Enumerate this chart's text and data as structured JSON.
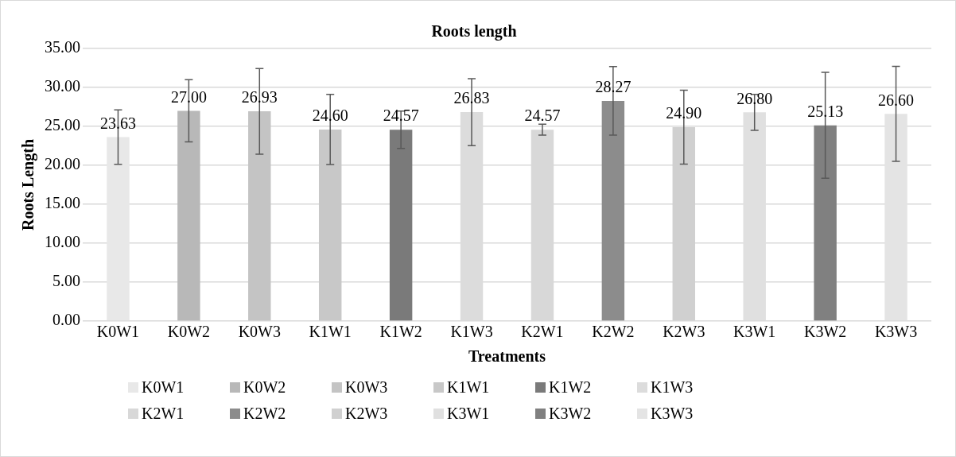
{
  "chart_data": {
    "type": "bar",
    "title": "Roots length",
    "xlabel": "Treatments",
    "ylabel": "Roots Length",
    "categories": [
      "K0W1",
      "K0W2",
      "K0W3",
      "K1W1",
      "K1W2",
      "K1W3",
      "K2W1",
      "K2W2",
      "K2W3",
      "K3W1",
      "K3W2",
      "K3W3"
    ],
    "ylim": [
      0,
      35
    ],
    "yticks": [
      {
        "value": 0,
        "label": "0.00"
      },
      {
        "value": 5,
        "label": "5.00"
      },
      {
        "value": 10,
        "label": "10.00"
      },
      {
        "value": 15,
        "label": "15.00"
      },
      {
        "value": 20,
        "label": "20.00"
      },
      {
        "value": 25,
        "label": "25.00"
      },
      {
        "value": 30,
        "label": "30.00"
      },
      {
        "value": 35,
        "label": "35.00"
      }
    ],
    "grid": "y",
    "legend": "bottom",
    "series": [
      {
        "name": "K0W1",
        "color": "#e8e8e8",
        "values": [
          23.63,
          null,
          null,
          null,
          null,
          null,
          null,
          null,
          null,
          null,
          null,
          null
        ],
        "errors": [
          3.5,
          null,
          null,
          null,
          null,
          null,
          null,
          null,
          null,
          null,
          null,
          null
        ],
        "value_labels": [
          "23.63",
          null,
          null,
          null,
          null,
          null,
          null,
          null,
          null,
          null,
          null,
          null
        ]
      },
      {
        "name": "K0W2",
        "color": "#b8b8b8",
        "values": [
          null,
          27,
          null,
          null,
          null,
          null,
          null,
          null,
          null,
          null,
          null,
          null
        ],
        "errors": [
          null,
          4,
          null,
          null,
          null,
          null,
          null,
          null,
          null,
          null,
          null,
          null
        ],
        "value_labels": [
          null,
          "27.00",
          null,
          null,
          null,
          null,
          null,
          null,
          null,
          null,
          null,
          null
        ]
      },
      {
        "name": "K0W3",
        "color": "#c4c4c4",
        "values": [
          null,
          null,
          26.93,
          null,
          null,
          null,
          null,
          null,
          null,
          null,
          null,
          null
        ],
        "errors": [
          null,
          null,
          5.5,
          null,
          null,
          null,
          null,
          null,
          null,
          null,
          null,
          null
        ],
        "value_labels": [
          null,
          null,
          "26.93",
          null,
          null,
          null,
          null,
          null,
          null,
          null,
          null,
          null
        ]
      },
      {
        "name": "K1W1",
        "color": "#c8c8c8",
        "values": [
          null,
          null,
          null,
          24.6,
          null,
          null,
          null,
          null,
          null,
          null,
          null,
          null
        ],
        "errors": [
          null,
          null,
          null,
          4.5,
          null,
          null,
          null,
          null,
          null,
          null,
          null,
          null
        ],
        "value_labels": [
          null,
          null,
          null,
          "24.60",
          null,
          null,
          null,
          null,
          null,
          null,
          null,
          null
        ]
      },
      {
        "name": "K1W2",
        "color": "#7a7a7a",
        "values": [
          null,
          null,
          null,
          null,
          24.57,
          null,
          null,
          null,
          null,
          null,
          null,
          null
        ],
        "errors": [
          null,
          null,
          null,
          null,
          2.4,
          null,
          null,
          null,
          null,
          null,
          null,
          null
        ],
        "value_labels": [
          null,
          null,
          null,
          null,
          "24.57",
          null,
          null,
          null,
          null,
          null,
          null,
          null
        ]
      },
      {
        "name": "K1W3",
        "color": "#dcdcdc",
        "values": [
          null,
          null,
          null,
          null,
          null,
          26.83,
          null,
          null,
          null,
          null,
          null,
          null
        ],
        "errors": [
          null,
          null,
          null,
          null,
          null,
          4.3,
          null,
          null,
          null,
          null,
          null,
          null
        ],
        "value_labels": [
          null,
          null,
          null,
          null,
          null,
          "26.83",
          null,
          null,
          null,
          null,
          null,
          null
        ]
      },
      {
        "name": "K2W1",
        "color": "#d8d8d8",
        "values": [
          null,
          null,
          null,
          null,
          null,
          null,
          24.57,
          null,
          null,
          null,
          null,
          null
        ],
        "errors": [
          null,
          null,
          null,
          null,
          null,
          null,
          0.7,
          null,
          null,
          null,
          null,
          null
        ],
        "value_labels": [
          null,
          null,
          null,
          null,
          null,
          null,
          "24.57",
          null,
          null,
          null,
          null,
          null
        ]
      },
      {
        "name": "K2W2",
        "color": "#8c8c8c",
        "values": [
          null,
          null,
          null,
          null,
          null,
          null,
          null,
          28.27,
          null,
          null,
          null,
          null
        ],
        "errors": [
          null,
          null,
          null,
          null,
          null,
          null,
          null,
          4.4,
          null,
          null,
          null,
          null
        ],
        "value_labels": [
          null,
          null,
          null,
          null,
          null,
          null,
          null,
          "28.27",
          null,
          null,
          null,
          null
        ]
      },
      {
        "name": "K2W3",
        "color": "#d0d0d0",
        "values": [
          null,
          null,
          null,
          null,
          null,
          null,
          null,
          null,
          24.9,
          null,
          null,
          null
        ],
        "errors": [
          null,
          null,
          null,
          null,
          null,
          null,
          null,
          null,
          4.75,
          null,
          null,
          null
        ],
        "value_labels": [
          null,
          null,
          null,
          null,
          null,
          null,
          null,
          null,
          "24.90",
          null,
          null,
          null
        ]
      },
      {
        "name": "K3W1",
        "color": "#e0e0e0",
        "values": [
          null,
          null,
          null,
          null,
          null,
          null,
          null,
          null,
          null,
          26.8,
          null,
          null
        ],
        "errors": [
          null,
          null,
          null,
          null,
          null,
          null,
          null,
          null,
          null,
          2.3,
          null,
          null
        ],
        "value_labels": [
          null,
          null,
          null,
          null,
          null,
          null,
          null,
          null,
          null,
          "26.80",
          null,
          null
        ]
      },
      {
        "name": "K3W2",
        "color": "#808080",
        "values": [
          null,
          null,
          null,
          null,
          null,
          null,
          null,
          null,
          null,
          null,
          25.13,
          null
        ],
        "errors": [
          null,
          null,
          null,
          null,
          null,
          null,
          null,
          null,
          null,
          null,
          6.8,
          null
        ],
        "value_labels": [
          null,
          null,
          null,
          null,
          null,
          null,
          null,
          null,
          null,
          null,
          "25.13",
          null
        ]
      },
      {
        "name": "K3W3",
        "color": "#e4e4e4",
        "values": [
          null,
          null,
          null,
          null,
          null,
          null,
          null,
          null,
          null,
          null,
          null,
          26.6
        ],
        "errors": [
          null,
          null,
          null,
          null,
          null,
          null,
          null,
          null,
          null,
          null,
          null,
          6.1
        ],
        "value_labels": [
          null,
          null,
          null,
          null,
          null,
          null,
          null,
          null,
          null,
          null,
          null,
          "26.60"
        ]
      }
    ]
  }
}
